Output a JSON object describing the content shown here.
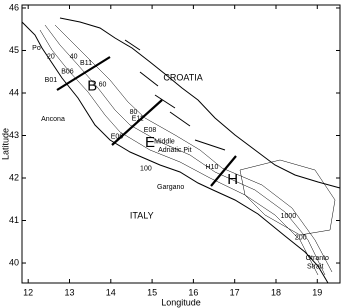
{
  "map": {
    "xlim": [
      11.85,
      19.55
    ],
    "ylim": [
      39.53,
      46.07
    ],
    "xticks": [
      12,
      13,
      14,
      15,
      16,
      17,
      18,
      19
    ],
    "yticks": [
      40,
      41,
      42,
      43,
      44,
      45,
      46
    ],
    "xlabel": "Longitude",
    "ylabel": "Latitude",
    "labels": [
      {
        "text": "Po",
        "lon": 12.2,
        "lat": 45.05,
        "size": "small"
      },
      {
        "text": "20",
        "lon": 12.55,
        "lat": 44.85,
        "size": "small"
      },
      {
        "text": "40",
        "lon": 13.1,
        "lat": 44.85,
        "size": "small"
      },
      {
        "text": "B11",
        "lon": 13.4,
        "lat": 44.7,
        "size": "small"
      },
      {
        "text": "B06",
        "lon": 12.95,
        "lat": 44.5,
        "size": "small"
      },
      {
        "text": "B01",
        "lon": 12.55,
        "lat": 44.3,
        "size": "small"
      },
      {
        "text": "B",
        "lon": 13.55,
        "lat": 44.15,
        "size": "large"
      },
      {
        "text": "60",
        "lon": 13.8,
        "lat": 44.2,
        "size": "small"
      },
      {
        "text": "CROATIA",
        "lon": 15.75,
        "lat": 44.35,
        "size": "medium"
      },
      {
        "text": "Ancona",
        "lon": 12.6,
        "lat": 43.38,
        "size": "small"
      },
      {
        "text": "80",
        "lon": 14.55,
        "lat": 43.55,
        "size": "small"
      },
      {
        "text": "E11",
        "lon": 14.65,
        "lat": 43.4,
        "size": "small"
      },
      {
        "text": "E08",
        "lon": 14.95,
        "lat": 43.12,
        "size": "small"
      },
      {
        "text": "E06",
        "lon": 14.15,
        "lat": 42.97,
        "size": "small"
      },
      {
        "text": "E",
        "lon": 14.95,
        "lat": 42.82,
        "size": "large"
      },
      {
        "text": "Middle",
        "lon": 15.3,
        "lat": 42.85,
        "size": "small"
      },
      {
        "text": "Adriatic Pit",
        "lon": 15.55,
        "lat": 42.65,
        "size": "small"
      },
      {
        "text": "100",
        "lon": 14.85,
        "lat": 42.22,
        "size": "small"
      },
      {
        "text": "H10",
        "lon": 16.45,
        "lat": 42.25,
        "size": "small"
      },
      {
        "text": "H",
        "lon": 16.95,
        "lat": 41.95,
        "size": "large"
      },
      {
        "text": "Gargano",
        "lon": 15.45,
        "lat": 41.78,
        "size": "small"
      },
      {
        "text": "ITALY",
        "lon": 14.75,
        "lat": 41.1,
        "size": "medium"
      },
      {
        "text": "1000",
        "lon": 18.3,
        "lat": 41.1,
        "size": "small"
      },
      {
        "text": "200",
        "lon": 18.6,
        "lat": 40.6,
        "size": "small"
      },
      {
        "text": "Otranto",
        "lon": 19.0,
        "lat": 40.12,
        "size": "small"
      },
      {
        "text": "Strait",
        "lon": 18.95,
        "lat": 39.92,
        "size": "small"
      }
    ]
  }
}
